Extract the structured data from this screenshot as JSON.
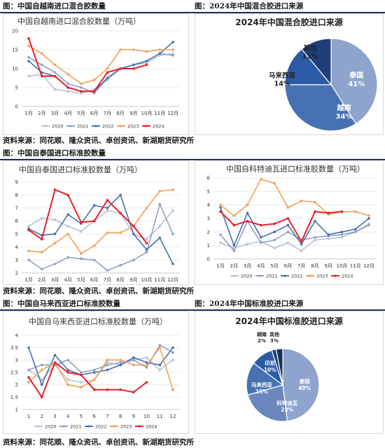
{
  "headers": [
    {
      "left": "图：中国自越南进口混合胶数量",
      "right": "图：2024年中国混合胶进口来源"
    },
    {
      "left": "图：中国自泰国进口标准胶数量",
      "right": "图：中国自科特迪瓦进口标准胶数量"
    },
    {
      "left": "图：中国自马来西亚进口标准胶数量",
      "right": "图：2024年中国标准胶进口来源"
    }
  ],
  "source_text": "资料来源：同花顺、隆众资讯、卓创资讯、新湖期货研究所",
  "colors": {
    "2020": "#b7c3d8",
    "2021": "#8fa1c4",
    "2022": "#4670b0",
    "2023": "#f0a15a",
    "2024": "#e8202a",
    "rule": "#1f2d6b"
  },
  "chart_data": [
    {
      "type": "line",
      "title": "中国自越南进口混合胶数量（万吨）",
      "categories": [
        "1月",
        "2月",
        "3月",
        "4月",
        "5月",
        "6月",
        "7月",
        "8月",
        "9月",
        "10月",
        "11月",
        "12月"
      ],
      "ylim": [
        0,
        20
      ],
      "yticks": [
        0,
        5,
        10,
        15,
        20
      ],
      "series": [
        {
          "name": "2020",
          "values": [
            8,
            8.5,
            4.5,
            4,
            3.5,
            4.5,
            7,
            10,
            11,
            11.5,
            13.5,
            14
          ]
        },
        {
          "name": "2021",
          "values": [
            13,
            11,
            9,
            6,
            5,
            3.5,
            7.5,
            10,
            11,
            12,
            14,
            13.5
          ]
        },
        {
          "name": "2022",
          "values": [
            12,
            9,
            8,
            5,
            4,
            4,
            7.5,
            10,
            11,
            12,
            14,
            17
          ]
        },
        {
          "name": "2023",
          "values": [
            16,
            14,
            11,
            8.5,
            6,
            7,
            10,
            15,
            15,
            14.5,
            15,
            15
          ]
        },
        {
          "name": "2024",
          "values": [
            18,
            8,
            8,
            5,
            4,
            4,
            9,
            10,
            10,
            11,
            null,
            null
          ]
        }
      ]
    },
    {
      "type": "pie",
      "title": "2024年中国混合胶进口来源",
      "slices": [
        {
          "label": "泰国",
          "value": 41,
          "text": "41%",
          "color": "#8ea4cc"
        },
        {
          "label": "越南",
          "value": 34,
          "text": "34%",
          "color": "#4671b3"
        },
        {
          "label": "马来西亚",
          "value": 14,
          "text": "14%",
          "color": "#2d5aa6"
        },
        {
          "label": "其他",
          "value": 11,
          "text": "11%",
          "color": "#1f3f7a"
        }
      ]
    },
    {
      "type": "line",
      "title": "中国自泰国进口标准胶数量（万吨）",
      "categories": [
        "1月",
        "2月",
        "3月",
        "4月",
        "5月",
        "6月",
        "7月",
        "8月",
        "9月",
        "10月",
        "11月",
        "12月"
      ],
      "ylim": [
        2,
        9
      ],
      "yticks": [
        2,
        3,
        4,
        5,
        6,
        7,
        8,
        9
      ],
      "series": [
        {
          "name": "2020",
          "values": [
            5.6,
            6.2,
            6.1,
            5.6,
            5.2,
            6.0,
            6.8,
            6.6,
            5.0,
            4.6,
            5.6,
            6.8
          ]
        },
        {
          "name": "2021",
          "values": [
            3.0,
            2.3,
            2.7,
            3.2,
            3.1,
            3.0,
            2.2,
            2.6,
            3.0,
            3.6,
            7.3,
            5.0
          ]
        },
        {
          "name": "2022",
          "values": [
            5.4,
            4.9,
            5.0,
            6.5,
            5.8,
            7.2,
            7.0,
            8.0,
            5.0,
            3.8,
            4.7,
            2.7
          ]
        },
        {
          "name": "2023",
          "values": [
            3.7,
            3.6,
            4.3,
            5.0,
            3.5,
            4.1,
            5.1,
            5.1,
            5.6,
            7.0,
            8.3,
            8.4
          ]
        },
        {
          "name": "2024",
          "values": [
            5.3,
            4.6,
            8.4,
            8.0,
            5.9,
            6.0,
            7.6,
            6.6,
            5.6,
            4.3,
            null,
            null
          ]
        }
      ]
    },
    {
      "type": "line",
      "title": "中国自科特迪瓦进口标准胶数量（万吨）",
      "categories": [
        "1月",
        "2月",
        "3月",
        "4月",
        "5月",
        "6月",
        "7月",
        "8月",
        "9月",
        "10月",
        "11月",
        "12月"
      ],
      "ylim": [
        0,
        6
      ],
      "yticks": [
        0,
        1,
        2,
        3,
        4,
        5,
        6
      ],
      "series": [
        {
          "name": "2020",
          "values": [
            1.2,
            0.8,
            1.1,
            1.3,
            0.8,
            1.2,
            0.6,
            1.4,
            1.5,
            1.6,
            2.0,
            2.6
          ]
        },
        {
          "name": "2021",
          "values": [
            1.8,
            0.6,
            2.8,
            1.2,
            1.4,
            2.0,
            1.4,
            1.6,
            1.7,
            1.8,
            2.0,
            2.5
          ]
        },
        {
          "name": "2022",
          "values": [
            3.8,
            1.0,
            3.4,
            1.6,
            2.0,
            2.5,
            1.1,
            2.8,
            1.8,
            2.0,
            2.2,
            3.0
          ]
        },
        {
          "name": "2023",
          "values": [
            4.0,
            3.2,
            4.0,
            5.9,
            5.6,
            3.8,
            4.3,
            4.2,
            3.3,
            3.5,
            3.5,
            3.2
          ]
        },
        {
          "name": "2024",
          "values": [
            3.5,
            2.5,
            2.8,
            2.5,
            2.6,
            3.0,
            1.3,
            3.5,
            3.4,
            3.5,
            null,
            null
          ]
        }
      ]
    },
    {
      "type": "line",
      "title": "中国自马来西亚进口标准胶数量（万吨）",
      "categories": [
        "1",
        "2",
        "3",
        "4",
        "5",
        "6",
        "7",
        "8",
        "9",
        "10",
        "11",
        "12"
      ],
      "ylim": [
        1,
        4
      ],
      "yticks": [
        1,
        1.5,
        2,
        2.5,
        3,
        3.5,
        4
      ],
      "series": [
        {
          "name": "2020",
          "values": [
            2.6,
            2.2,
            2.8,
            2.2,
            2.1,
            2.2,
            2.9,
            2.8,
            3.0,
            3.1,
            2.6,
            3.0
          ]
        },
        {
          "name": "2021",
          "values": [
            2.6,
            2.8,
            2.8,
            3.0,
            2.5,
            2.6,
            2.8,
            2.9,
            3.0,
            2.7,
            3.6,
            3.3
          ]
        },
        {
          "name": "2022",
          "values": [
            3.5,
            2.0,
            3.2,
            2.6,
            2.4,
            2.5,
            2.6,
            2.8,
            3.1,
            2.9,
            2.8,
            3.5
          ]
        },
        {
          "name": "2023",
          "values": [
            2.1,
            2.6,
            2.9,
            2.0,
            1.9,
            2.2,
            3.0,
            3.0,
            2.8,
            2.8,
            3.5,
            1.8
          ]
        },
        {
          "name": "2024",
          "values": [
            2.3,
            1.5,
            2.9,
            2.5,
            2.4,
            1.8,
            1.8,
            1.8,
            1.7,
            2.1,
            null,
            null
          ]
        }
      ]
    },
    {
      "type": "pie",
      "title": "2024年中国标准胶进口来源",
      "slices": [
        {
          "label": "泰国",
          "value": 49,
          "text": "49%",
          "color": "#8ea4cc"
        },
        {
          "label": "科特迪瓦",
          "value": 23,
          "text": "23%",
          "color": "#6a86bd"
        },
        {
          "label": "马来西亚",
          "value": 15,
          "text": "15%",
          "color": "#4671b3"
        },
        {
          "label": "印尼",
          "value": 10,
          "text": "10%",
          "color": "#2d5aa6"
        },
        {
          "label": "越南",
          "value": 2,
          "text": "2%",
          "color": "#1f3f7a"
        },
        {
          "label": "其他",
          "value": 3,
          "text": "3%",
          "color": "#18305e"
        }
      ]
    }
  ]
}
